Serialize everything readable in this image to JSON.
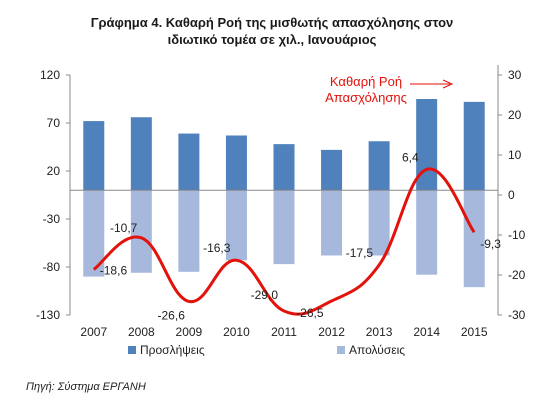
{
  "chart_data": {
    "type": "bar",
    "title": "Γράφημα 4. Καθαρή Ροή της μισθωτής απασχόλησης στον ιδιωτικό τομέα σε χιλ., Ιανουάριος",
    "title_lines": [
      "Γράφημα 4. Καθαρή Ροή της μισθωτής απασχόλησης στον",
      "ιδιωτικό τομέα σε χιλ., Ιανουάριος"
    ],
    "categories": [
      "2007",
      "2008",
      "2009",
      "2010",
      "2011",
      "2012",
      "2013",
      "2014",
      "2015"
    ],
    "series": [
      {
        "name": "Προσλήψεις",
        "axis": "left",
        "type": "bar",
        "color": "#4f81bd",
        "values": [
          72,
          76,
          59,
          57,
          48,
          42,
          51,
          95,
          92
        ]
      },
      {
        "name": "Απολύσεις",
        "axis": "left",
        "type": "bar",
        "color": "#a6b8dc",
        "values": [
          -90,
          -86,
          -85,
          -73,
          -77,
          -68,
          -68,
          -88,
          -101
        ]
      },
      {
        "name": "Καθαρή Ροή Απασχόλησης",
        "axis": "right",
        "type": "line",
        "color": "#e3120b",
        "values": [
          -18.6,
          -10.7,
          -26.6,
          -16.3,
          -29.0,
          -26.5,
          -17.5,
          6.4,
          -9.3
        ],
        "labels": [
          "-18,6",
          "-10,7",
          "-26,6",
          "-16,3",
          "-29,0",
          "-26,5",
          "-17,5",
          "6,4",
          "-9,3"
        ]
      }
    ],
    "y_left": {
      "min": -130,
      "max": 120,
      "ticks": [
        120,
        70,
        20,
        -30,
        -80,
        -130
      ],
      "tick_labels": [
        "120",
        "70",
        "20",
        "-30",
        "-80",
        "-130"
      ]
    },
    "y_right": {
      "min": -30,
      "max": 30,
      "ticks": [
        30,
        20,
        10,
        0,
        -10,
        -20,
        -30
      ],
      "tick_labels": [
        "30",
        "20",
        "10",
        "0",
        "-10",
        "-20",
        "-30"
      ]
    },
    "annotation": {
      "lines": [
        "Καθαρή Ροή",
        "Απασχόλησης"
      ],
      "color": "#e3120b"
    },
    "legend": {
      "placement": "bottom",
      "items": [
        "Προσλήψεις",
        "Απολύσεις"
      ]
    },
    "grid": false
  },
  "source": "Πηγή: Σύστημα ΕΡΓΑΝΗ"
}
